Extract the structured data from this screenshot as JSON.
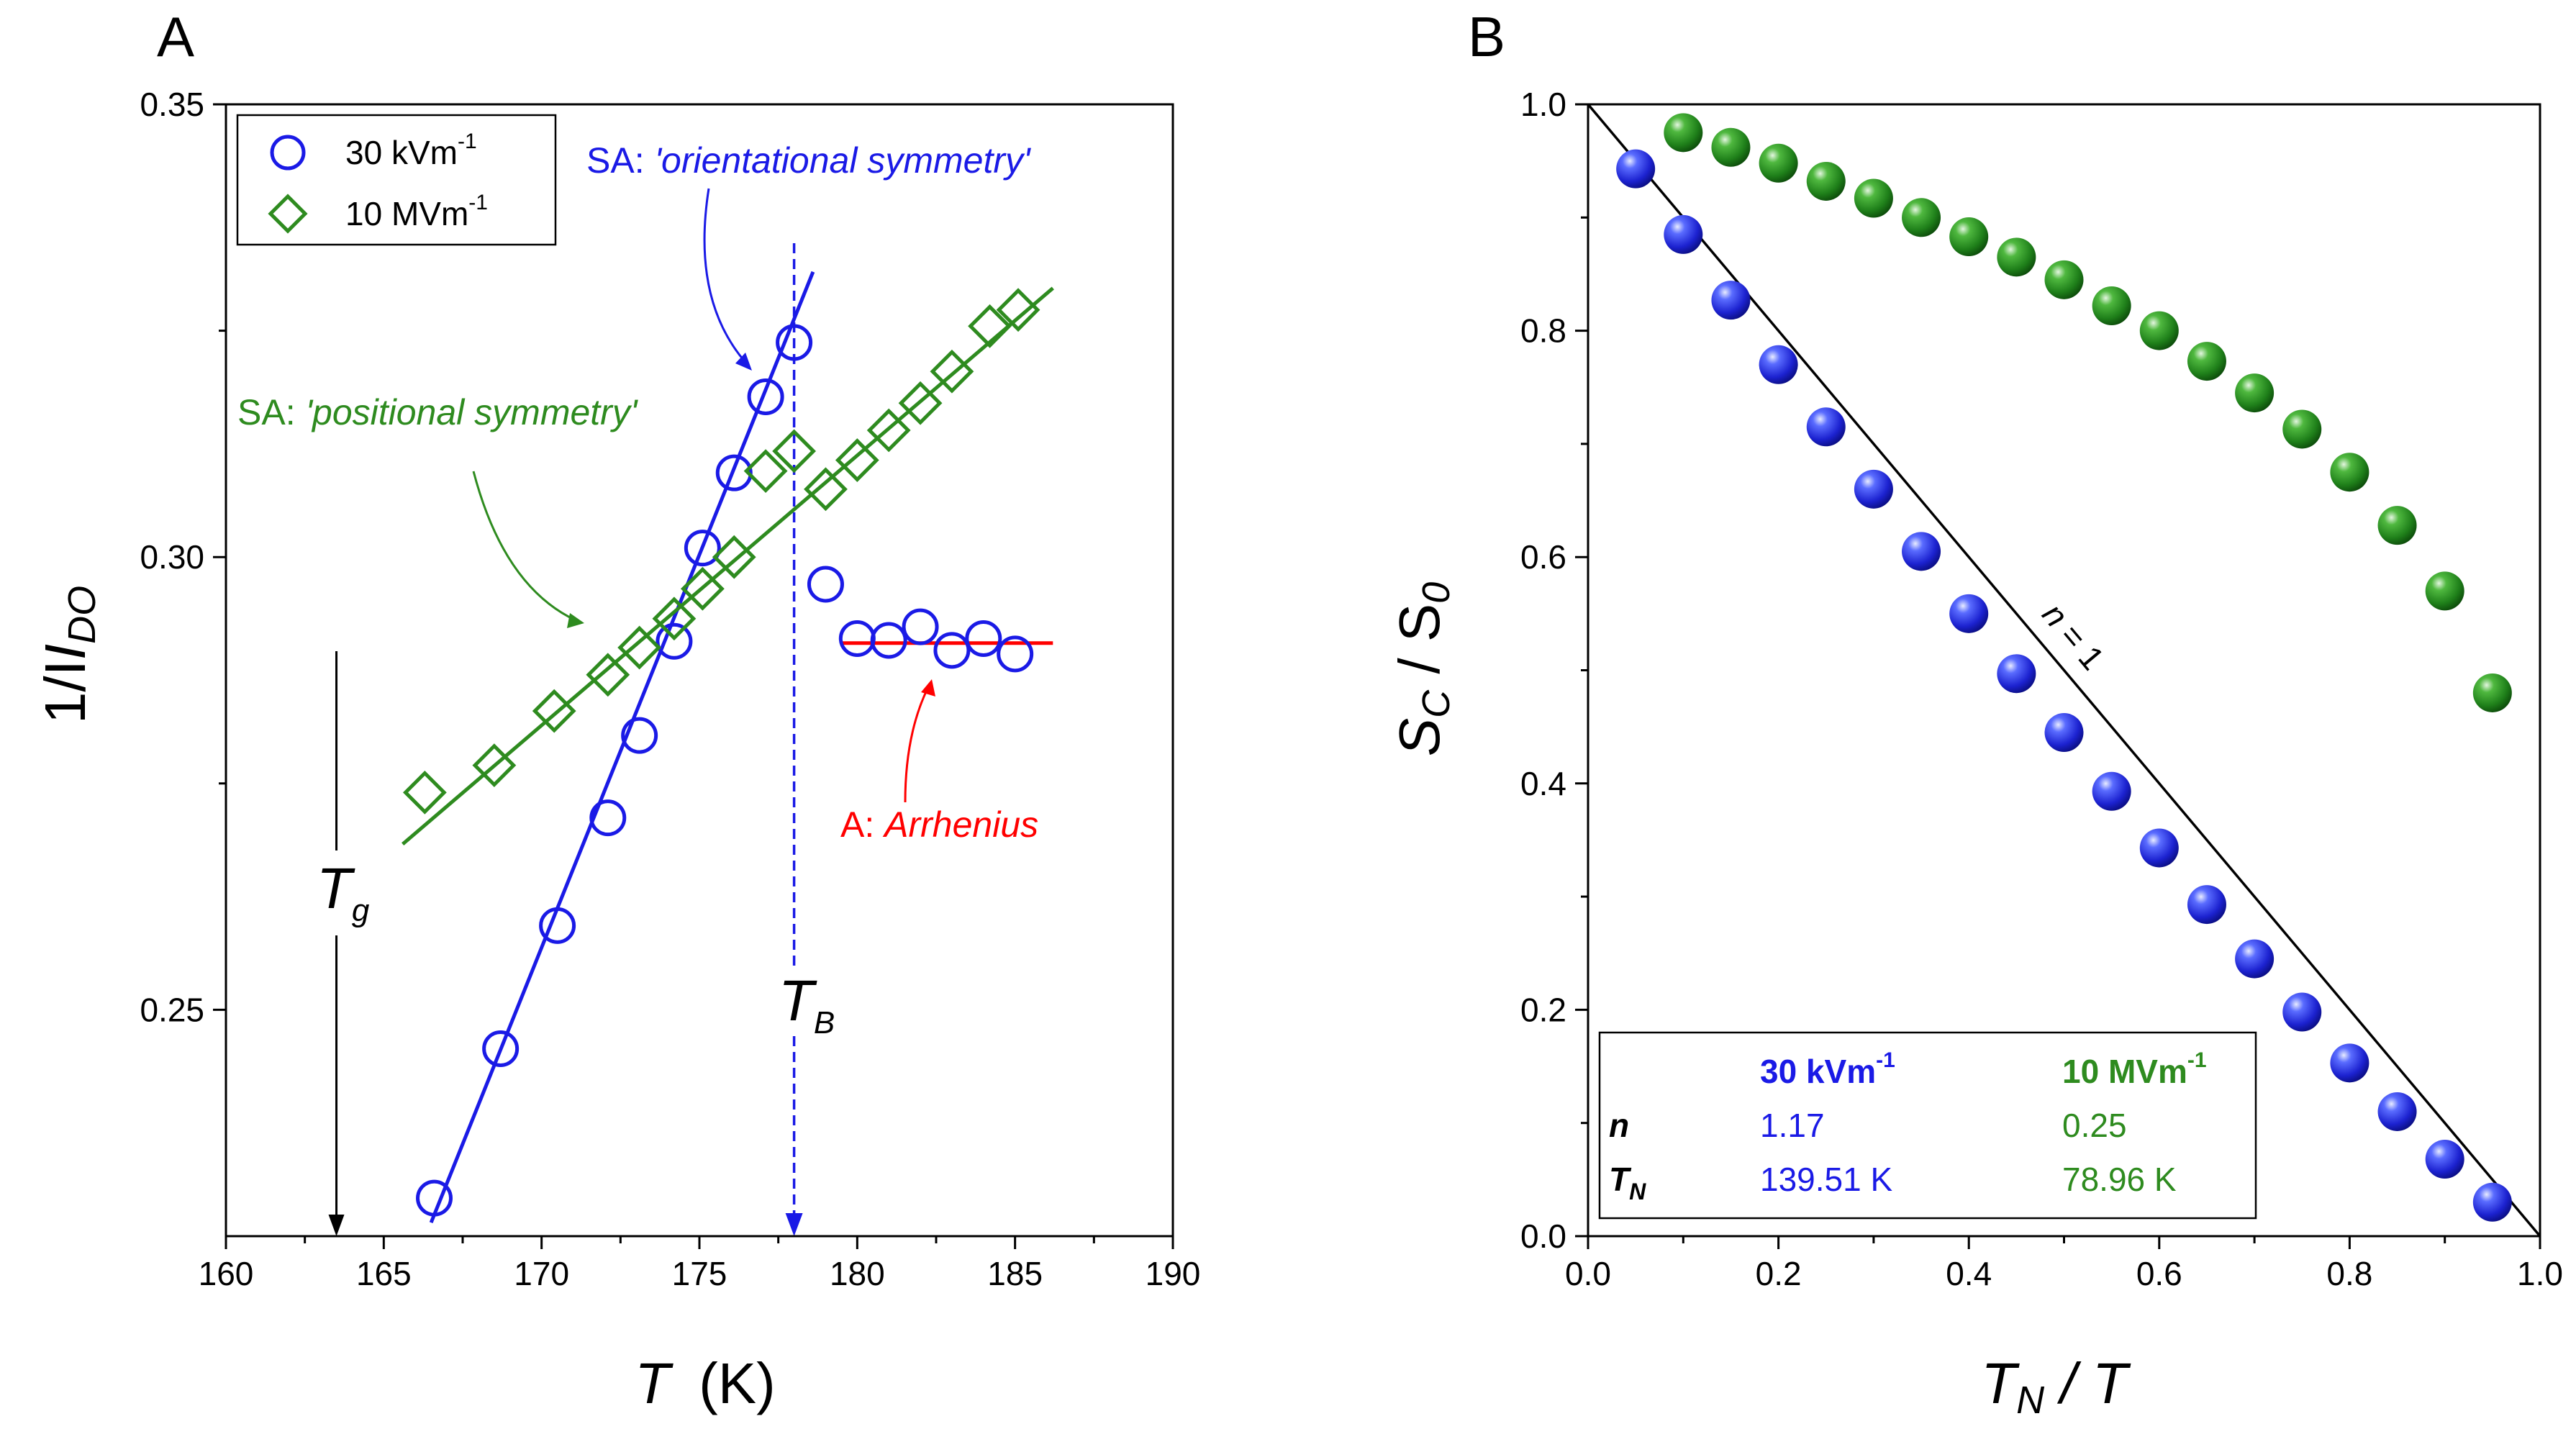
{
  "chart_data": [
    {
      "panel_label": "A",
      "type": "scatter",
      "xlabel": "T",
      "xlabel_unit": "(K)",
      "ylabel": "1/I",
      "ylabel_sub": "DO",
      "xlim": [
        160,
        190
      ],
      "ylim": [
        0.225,
        0.35
      ],
      "xticks": [
        160,
        165,
        170,
        175,
        180,
        185,
        190
      ],
      "yticks": [
        0.25,
        0.3,
        0.35
      ],
      "ytick_labels": [
        "0.25",
        "0.30",
        "0.35"
      ],
      "legend": [
        {
          "label": "30 kVm",
          "sup": "-1",
          "marker": "circle",
          "color": "#1a1ae6"
        },
        {
          "label": "10 MVm",
          "sup": "-1",
          "marker": "diamond",
          "color": "#2e8b1f"
        }
      ],
      "series": [
        {
          "name": "30 kVm-1",
          "color": "#1a1ae6",
          "marker": "circle",
          "x": [
            166.6,
            168.7,
            170.5,
            172.1,
            173.1,
            174.2,
            175.1,
            176.1,
            177.1,
            178.0,
            179.0,
            180.0,
            181.0,
            182.0,
            183.0,
            184.0,
            185.0
          ],
          "y": [
            0.2292,
            0.2457,
            0.2593,
            0.2712,
            0.2803,
            0.2907,
            0.301,
            0.3093,
            0.3177,
            0.3237,
            0.297,
            0.291,
            0.2908,
            0.2923,
            0.2897,
            0.291,
            0.2893
          ]
        },
        {
          "name": "10 MVm-1",
          "color": "#2e8b1f",
          "marker": "diamond",
          "x": [
            166.3,
            168.5,
            170.4,
            172.1,
            173.1,
            174.2,
            175.1,
            176.1,
            177.1,
            178.0,
            179.0,
            180.0,
            181.0,
            182.0,
            183.0,
            184.2,
            185.1
          ],
          "y": [
            0.274,
            0.277,
            0.283,
            0.287,
            0.29,
            0.2932,
            0.2965,
            0.3,
            0.3095,
            0.3117,
            0.3075,
            0.3107,
            0.314,
            0.317,
            0.3205,
            0.3255,
            0.3273
          ]
        }
      ],
      "fits": [
        {
          "name": "SA orientational fit",
          "color": "#1a1ae6",
          "x": [
            166.5,
            178.6
          ],
          "y": [
            0.2265,
            0.3315
          ]
        },
        {
          "name": "SA positional fit",
          "color": "#2e8b1f",
          "x": [
            165.6,
            186.2
          ],
          "y": [
            0.2683,
            0.3297
          ]
        },
        {
          "name": "Arrhenius fit",
          "color": "#ff0000",
          "x": [
            179.5,
            186.2
          ],
          "y": [
            0.2905,
            0.2905
          ]
        }
      ],
      "markers": [
        {
          "label": "T",
          "sub": "g",
          "x": 163.5,
          "color": "#000000",
          "style": "solid"
        },
        {
          "label": "T",
          "sub": "B",
          "x": 178.0,
          "color": "#1a1ae6",
          "style": "dashed"
        }
      ],
      "annotations": [
        {
          "text_plain": "SA: ",
          "text_italic": "'orientational symmetry'",
          "color": "#1a1ae6"
        },
        {
          "text_plain": "SA: ",
          "text_italic": "'positional symmetry'",
          "color": "#2e8b1f"
        },
        {
          "text_plain": "A: ",
          "text_italic": "Arrhenius",
          "color": "#ff0000"
        }
      ]
    },
    {
      "panel_label": "B",
      "type": "scatter",
      "xlabel": "T",
      "xlabel_sub": "N",
      "xlabel_rest": " / T",
      "ylabel": "S",
      "ylabel_sub": "C",
      "ylabel_rest": " / S",
      "ylabel_sub2": "0",
      "xlim": [
        0.0,
        1.0
      ],
      "ylim": [
        0.0,
        1.0
      ],
      "xticks": [
        0.0,
        0.2,
        0.4,
        0.6,
        0.8,
        1.0
      ],
      "xtick_labels": [
        "0.0",
        "0.2",
        "0.4",
        "0.6",
        "0.8",
        "1.0"
      ],
      "yticks": [
        0.0,
        0.2,
        0.4,
        0.6,
        0.8,
        1.0
      ],
      "ytick_labels": [
        "0.0",
        "0.2",
        "0.4",
        "0.6",
        "0.8",
        "1.0"
      ],
      "series": [
        {
          "name": "30 kVm-1",
          "color": "#2222dd",
          "x": [
            0.05,
            0.1,
            0.15,
            0.2,
            0.25,
            0.3,
            0.35,
            0.4,
            0.45,
            0.5,
            0.55,
            0.6,
            0.65,
            0.7,
            0.75,
            0.8,
            0.85,
            0.9,
            0.95
          ],
          "y": [
            0.943,
            0.885,
            0.827,
            0.77,
            0.715,
            0.66,
            0.605,
            0.55,
            0.497,
            0.445,
            0.393,
            0.343,
            0.293,
            0.245,
            0.198,
            0.153,
            0.11,
            0.068,
            0.03
          ]
        },
        {
          "name": "10 MVm-1",
          "color": "#1f8a1f",
          "x": [
            0.1,
            0.15,
            0.2,
            0.25,
            0.3,
            0.35,
            0.4,
            0.45,
            0.5,
            0.55,
            0.6,
            0.65,
            0.7,
            0.75,
            0.8,
            0.85,
            0.9,
            0.95
          ],
          "y": [
            0.975,
            0.962,
            0.948,
            0.932,
            0.917,
            0.9,
            0.883,
            0.865,
            0.845,
            0.822,
            0.8,
            0.773,
            0.745,
            0.713,
            0.675,
            0.628,
            0.57,
            0.48
          ]
        }
      ],
      "reference_line": {
        "label_prefix": "n",
        "label_rest": " = 1",
        "x": [
          0.0,
          1.0
        ],
        "y": [
          1.0,
          0.0
        ],
        "color": "#000000"
      },
      "table": {
        "headers": [
          {
            "label": "30 kVm",
            "sup": "-1",
            "color": "#1a1ae6"
          },
          {
            "label": "10 MVm",
            "sup": "-1",
            "color": "#2e8b1f"
          }
        ],
        "rows": [
          {
            "label": "n",
            "label_sub": "",
            "values": [
              "1.17",
              "0.25"
            ]
          },
          {
            "label": "T",
            "label_sub": "N",
            "values": [
              "139.51 K",
              "78.96 K"
            ]
          }
        ]
      }
    }
  ]
}
